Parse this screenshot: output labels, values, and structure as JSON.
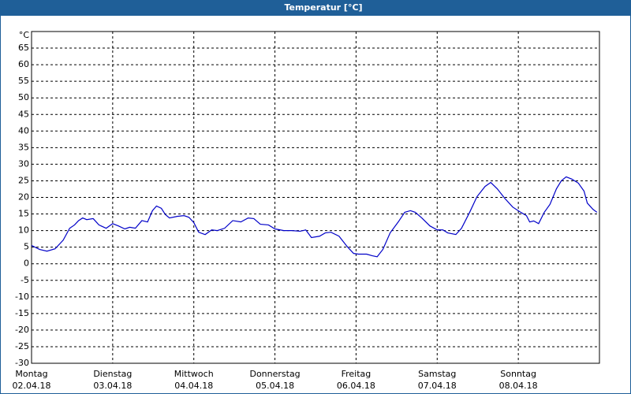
{
  "chart_data": {
    "type": "line",
    "title": "Temperatur [°C]",
    "y_unit": "°C",
    "xlim": [
      0,
      7
    ],
    "ylim": [
      -30,
      70
    ],
    "yticks": [
      -30,
      -25,
      -20,
      -15,
      -10,
      -5,
      0,
      5,
      10,
      15,
      20,
      25,
      30,
      35,
      40,
      45,
      50,
      55,
      60,
      65
    ],
    "xticks": [
      {
        "value": 0,
        "label": "Montag",
        "date": "02.04.18"
      },
      {
        "value": 1,
        "label": "Dienstag",
        "date": "03.04.18"
      },
      {
        "value": 2,
        "label": "Mittwoch",
        "date": "04.04.18"
      },
      {
        "value": 3,
        "label": "Donnerstag",
        "date": "05.04.18"
      },
      {
        "value": 4,
        "label": "Freitag",
        "date": "06.04.18"
      },
      {
        "value": 5,
        "label": "Samstag",
        "date": "07.04.18"
      },
      {
        "value": 6,
        "label": "Sonntag",
        "date": "08.04.18"
      }
    ],
    "grid": true,
    "series": [
      {
        "color": "#0000c8",
        "x": [
          0,
          0.1,
          0.19,
          0.29,
          0.39,
          0.47,
          0.53,
          0.58,
          0.63,
          0.68,
          0.76,
          0.83,
          0.92,
          1.0,
          1.07,
          1.15,
          1.21,
          1.28,
          1.36,
          1.43,
          1.49,
          1.54,
          1.6,
          1.65,
          1.7,
          1.8,
          1.88,
          1.94,
          2.0,
          2.06,
          2.14,
          2.22,
          2.29,
          2.38,
          2.48,
          2.58,
          2.67,
          2.74,
          2.82,
          2.92,
          3.0,
          3.11,
          3.21,
          3.31,
          3.38,
          3.45,
          3.55,
          3.62,
          3.69,
          3.79,
          3.89,
          3.97,
          4.03,
          4.13,
          4.2,
          4.26,
          4.33,
          4.42,
          4.52,
          4.6,
          4.67,
          4.73,
          4.81,
          4.91,
          5.0,
          5.07,
          5.13,
          5.23,
          5.3,
          5.4,
          5.49,
          5.59,
          5.66,
          5.74,
          5.83,
          5.93,
          6.03,
          6.1,
          6.14,
          6.19,
          6.25,
          6.32,
          6.39,
          6.47,
          6.53,
          6.59,
          6.66,
          6.74,
          6.81,
          6.85,
          6.92,
          6.97
        ],
        "values": [
          5.5,
          4.3,
          3.8,
          4.5,
          7.1,
          10.7,
          11.7,
          13,
          13.8,
          13.3,
          13.6,
          11.7,
          10.7,
          12.1,
          11.4,
          10.5,
          11,
          10.7,
          13,
          12.6,
          16,
          17.4,
          16.7,
          14.8,
          13.8,
          14.3,
          14.5,
          14,
          12.4,
          9.5,
          8.8,
          10.2,
          10,
          10.7,
          13,
          12.6,
          13.8,
          13.6,
          11.9,
          11.7,
          10.5,
          10,
          10,
          9.8,
          10.2,
          7.9,
          8.3,
          9.3,
          9.5,
          8.3,
          5.2,
          3.1,
          2.9,
          2.9,
          2.4,
          2.1,
          4.3,
          9.3,
          12.6,
          15.5,
          16,
          15.5,
          13.8,
          11.4,
          10.2,
          10.2,
          9.3,
          8.8,
          10.7,
          15.5,
          20.2,
          23.3,
          24.5,
          22.6,
          19.8,
          17.1,
          15.5,
          14.5,
          12.6,
          12.9,
          12.1,
          15.5,
          17.9,
          22.6,
          25,
          26.2,
          25.5,
          24.3,
          21.9,
          18.3,
          16.4,
          15.5
        ]
      }
    ]
  }
}
